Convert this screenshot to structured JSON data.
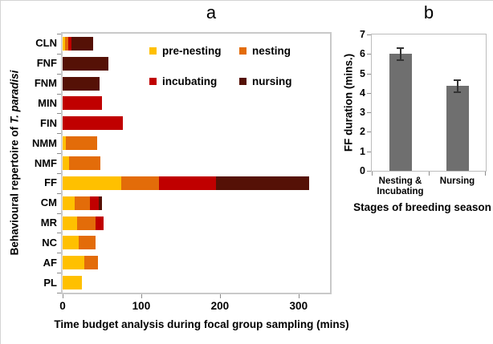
{
  "panel_titles": {
    "a": "a",
    "b": "b"
  },
  "panel_a_y_label": {
    "main": "Behavioural repertoire of ",
    "species": "T. paradisi"
  },
  "chart_data": [
    {
      "type": "bar",
      "orientation": "horizontal",
      "panel": "a",
      "title": "a",
      "categories": [
        "CLN",
        "FNF",
        "FNM",
        "MIN",
        "FIN",
        "NMM",
        "NMF",
        "FF",
        "CM",
        "MR",
        "NC",
        "AF",
        "PL"
      ],
      "series": [
        {
          "name": "pre-nesting",
          "color": "#FFC000",
          "values": [
            3,
            0,
            0,
            0,
            0,
            4,
            8,
            75,
            15,
            18,
            20,
            28,
            25
          ]
        },
        {
          "name": "nesting",
          "color": "#E36C09",
          "values": [
            4,
            0,
            0,
            0,
            0,
            40,
            40,
            48,
            20,
            24,
            22,
            17,
            0
          ]
        },
        {
          "name": "incubating",
          "color": "#C00000",
          "values": [
            4,
            0,
            0,
            50,
            77,
            0,
            0,
            72,
            11,
            10,
            0,
            0,
            0
          ]
        },
        {
          "name": "nursing",
          "color": "#551106",
          "values": [
            28,
            58,
            47,
            0,
            0,
            0,
            0,
            118,
            4,
            0,
            0,
            0,
            0
          ]
        }
      ],
      "xlabel": "Time budget analysis during focal group sampling (mins)",
      "ylabel": "Behavioural repertoire of T. paradisi",
      "xlim": [
        0,
        340
      ],
      "xticks": [
        0,
        100,
        200,
        300
      ],
      "grid": false,
      "legend_position": "inside-top"
    },
    {
      "type": "bar",
      "orientation": "vertical",
      "panel": "b",
      "title": "b",
      "categories": [
        "Nesting &\nIncubating",
        "Nursing"
      ],
      "values": [
        6.0,
        4.35
      ],
      "errors": [
        0.3,
        0.3
      ],
      "bar_color": "#6f6f6f",
      "xlabel": "Stages of breeding season",
      "ylabel": "FF duration  (mins.)",
      "ylim": [
        0,
        7
      ],
      "yticks": [
        0,
        1,
        2,
        3,
        4,
        5,
        6,
        7
      ],
      "grid": false
    }
  ]
}
